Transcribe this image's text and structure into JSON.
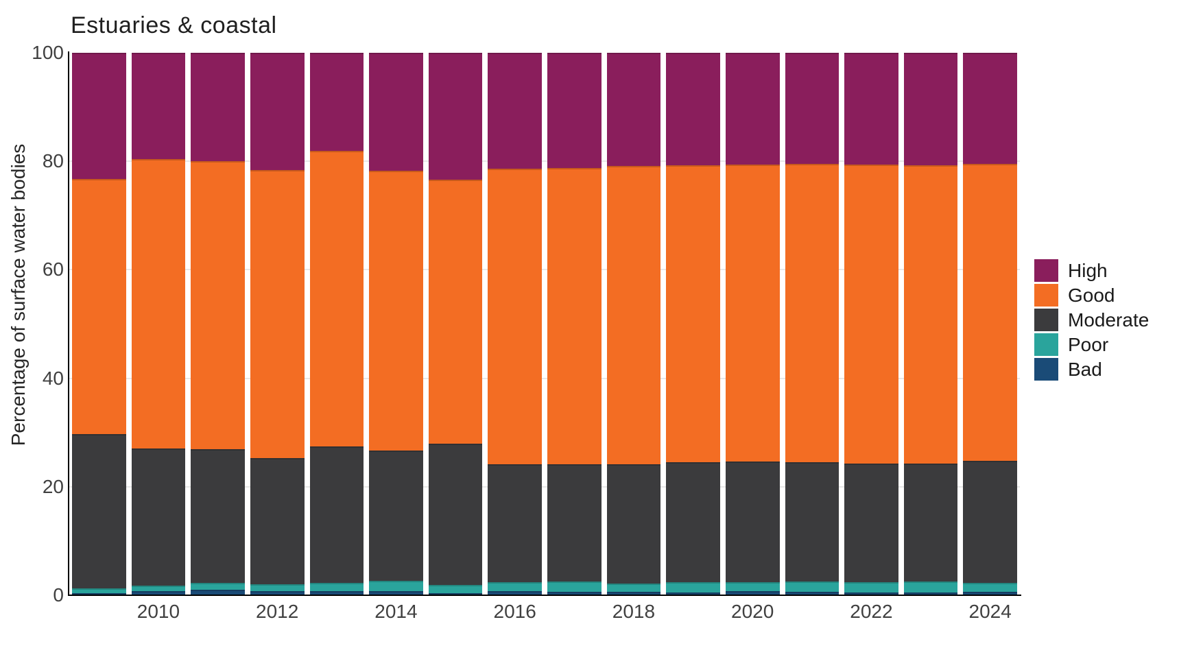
{
  "title": "Estuaries & coastal",
  "axes": {
    "y_label": "Percentage of surface water bodies",
    "y_ticks": [
      100,
      80,
      60,
      40,
      20,
      0
    ],
    "x_ticks": [
      "2010",
      "2012",
      "2014",
      "2016",
      "2018",
      "2020",
      "2022",
      "2024"
    ]
  },
  "legend": [
    {
      "label": "High",
      "color": "#8A1E5C"
    },
    {
      "label": "Good",
      "color": "#F36D23"
    },
    {
      "label": "Moderate",
      "color": "#3B3B3D"
    },
    {
      "label": "Poor",
      "color": "#2AA49C"
    },
    {
      "label": "Bad",
      "color": "#1A4B77"
    }
  ],
  "chart_data": {
    "type": "bar",
    "stacked": true,
    "title": "Estuaries & coastal",
    "xlabel": "",
    "ylabel": "Percentage of surface water bodies",
    "ylim": [
      0,
      100
    ],
    "grid": "horizontal",
    "legend_position": "right",
    "categories": [
      "2009",
      "2010",
      "2011",
      "2012",
      "2013",
      "2014",
      "2015",
      "2016",
      "2017",
      "2018",
      "2019",
      "2020",
      "2021",
      "2022",
      "2023",
      "2024"
    ],
    "series": [
      {
        "name": "Bad",
        "color": "#1A4B77",
        "values": [
          0.4,
          0.7,
          1.0,
          0.7,
          0.8,
          0.7,
          0.4,
          0.7,
          0.6,
          0.6,
          0.5,
          0.7,
          0.6,
          0.5,
          0.5,
          0.6
        ]
      },
      {
        "name": "Poor",
        "color": "#2AA49C",
        "values": [
          0.9,
          1.1,
          1.3,
          1.3,
          1.5,
          2.0,
          1.5,
          1.7,
          1.9,
          1.6,
          1.9,
          1.7,
          1.9,
          1.9,
          2.0,
          1.7
        ]
      },
      {
        "name": "Moderate",
        "color": "#3B3B3D",
        "values": [
          28.4,
          25.3,
          24.6,
          23.3,
          25.1,
          24.0,
          26.0,
          21.8,
          21.6,
          22.0,
          22.1,
          22.2,
          22.0,
          21.9,
          21.8,
          22.5
        ]
      },
      {
        "name": "Good",
        "color": "#F36D23",
        "values": [
          47.0,
          53.3,
          53.1,
          53.1,
          54.5,
          51.5,
          48.7,
          54.4,
          54.6,
          54.9,
          54.8,
          54.8,
          55.0,
          55.1,
          55.0,
          54.7
        ]
      },
      {
        "name": "High",
        "color": "#8A1E5C",
        "values": [
          23.3,
          19.6,
          20.0,
          21.6,
          18.1,
          21.8,
          23.4,
          21.4,
          21.3,
          20.9,
          20.7,
          20.6,
          20.5,
          20.6,
          20.7,
          20.5
        ]
      }
    ]
  }
}
